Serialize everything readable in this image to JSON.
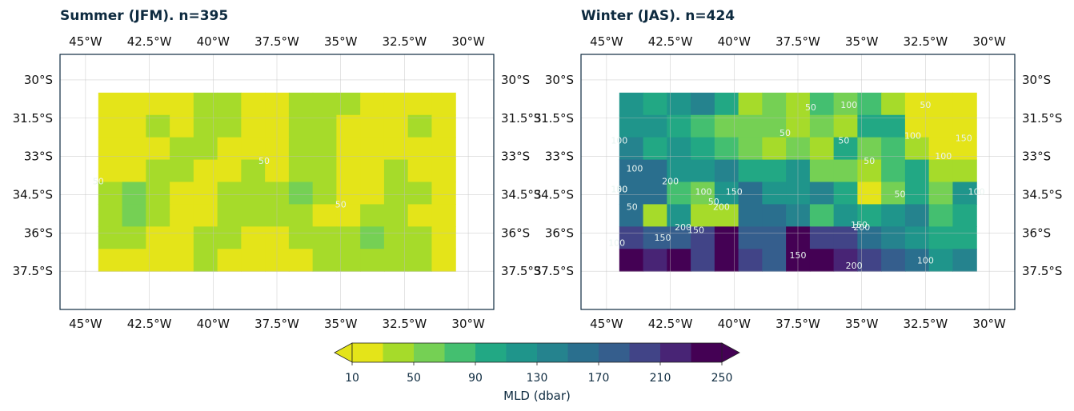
{
  "chart_data": [
    {
      "type": "heatmap",
      "title": "Summer (JFM). n=395",
      "x_ticks": [
        "45°W",
        "42.5°W",
        "40°W",
        "37.5°W",
        "35°W",
        "32.5°W",
        "30°W"
      ],
      "y_ticks": [
        "30°S",
        "31.5°S",
        "33°S",
        "34.5°S",
        "36°S",
        "37.5°S"
      ],
      "xlim": [
        -46,
        -29
      ],
      "ylim": [
        -39,
        -29
      ],
      "grid": true,
      "data_extent": {
        "lon": [
          -44.5,
          -30.5
        ],
        "lat": [
          -37.5,
          -30.5
        ]
      },
      "contour_levels": [
        50
      ],
      "contour_labels": [
        "50",
        "50",
        "50"
      ],
      "contour_label_positions": [
        [
          -38,
          -33.3
        ],
        [
          -44.5,
          -34.1
        ],
        [
          -35,
          -35.0
        ]
      ],
      "mld_grid": [
        [
          10,
          10,
          10,
          10,
          30,
          30,
          10,
          10,
          30,
          30,
          30,
          10,
          10,
          10,
          10
        ],
        [
          10,
          10,
          30,
          10,
          30,
          30,
          10,
          10,
          30,
          30,
          10,
          10,
          10,
          30,
          10
        ],
        [
          10,
          10,
          10,
          30,
          30,
          10,
          10,
          10,
          30,
          30,
          10,
          10,
          10,
          10,
          10
        ],
        [
          10,
          10,
          30,
          30,
          10,
          10,
          30,
          10,
          30,
          30,
          10,
          10,
          30,
          10,
          10
        ],
        [
          30,
          50,
          30,
          10,
          10,
          30,
          30,
          40,
          55,
          30,
          10,
          10,
          30,
          30,
          10
        ],
        [
          30,
          50,
          30,
          10,
          10,
          30,
          30,
          30,
          30,
          10,
          10,
          30,
          30,
          10,
          10
        ],
        [
          30,
          30,
          10,
          10,
          30,
          30,
          10,
          10,
          30,
          30,
          30,
          55,
          30,
          30,
          10
        ],
        [
          10,
          10,
          10,
          10,
          30,
          10,
          10,
          10,
          10,
          30,
          30,
          30,
          30,
          30,
          10
        ]
      ]
    },
    {
      "type": "heatmap",
      "title": "Winter (JAS). n=424",
      "x_ticks": [
        "45°W",
        "42.5°W",
        "40°W",
        "37.5°W",
        "35°W",
        "32.5°W",
        "30°W"
      ],
      "y_ticks": [
        "30°S",
        "31.5°S",
        "33°S",
        "34.5°S",
        "36°S",
        "37.5°S"
      ],
      "xlim": [
        -46,
        -29
      ],
      "ylim": [
        -39,
        -29
      ],
      "grid": true,
      "data_extent": {
        "lon": [
          -44.5,
          -30.5
        ],
        "lat": [
          -37.5,
          -30.5
        ]
      },
      "contour_levels": [
        50,
        100,
        150,
        200
      ],
      "contour_labels": [
        "50",
        "100",
        "50",
        "50",
        "100",
        "150",
        "50",
        "150",
        "50",
        "200",
        "150",
        "50",
        "100",
        "150",
        "100",
        "200",
        "200",
        "150",
        "200",
        "150",
        "150",
        "100",
        "200",
        "100",
        "50",
        "100",
        "50",
        "100",
        "100",
        "100"
      ],
      "contour_label_positions": [
        [
          -37,
          -31.2
        ],
        [
          -35.5,
          -31.1
        ],
        [
          -32.5,
          -31.1
        ],
        [
          -38,
          -32.2
        ],
        [
          -33,
          -32.3
        ],
        [
          -31,
          -32.4
        ],
        [
          -35.7,
          -32.5
        ],
        [
          -40,
          -34.5
        ],
        [
          -34.7,
          -33.3
        ],
        [
          -42.5,
          -34.1
        ],
        [
          -44.5,
          -34.4
        ],
        [
          -44,
          -35.1
        ],
        [
          -44.6,
          -36.5
        ],
        [
          -42.8,
          -36.3
        ],
        [
          -44.5,
          -34.4
        ],
        [
          -42,
          -35.9
        ],
        [
          -40.5,
          -35.1
        ],
        [
          -41.5,
          -36.0
        ],
        [
          -35,
          -35.9
        ],
        [
          -37.5,
          -37.0
        ],
        [
          -35.1,
          -35.8
        ],
        [
          -30.5,
          -34.5
        ],
        [
          -35.3,
          -37.4
        ],
        [
          -32.5,
          -37.2
        ],
        [
          -40.8,
          -34.9
        ],
        [
          -41.2,
          -34.5
        ],
        [
          -33.5,
          -34.6
        ],
        [
          -31.8,
          -33.1
        ],
        [
          -44.5,
          -32.5
        ],
        [
          -43.9,
          -33.6
        ]
      ],
      "mld_grid": [
        [
          110,
          100,
          120,
          130,
          90,
          30,
          60,
          30,
          70,
          60,
          80,
          30,
          20,
          20,
          10
        ],
        [
          120,
          110,
          90,
          80,
          50,
          60,
          50,
          30,
          60,
          30,
          90,
          100,
          20,
          20,
          10
        ],
        [
          130,
          100,
          110,
          90,
          70,
          50,
          40,
          60,
          40,
          100,
          60,
          70,
          30,
          20,
          10
        ],
        [
          160,
          150,
          110,
          120,
          140,
          100,
          90,
          120,
          60,
          50,
          40,
          80,
          90,
          30,
          40
        ],
        [
          160,
          150,
          70,
          60,
          110,
          160,
          110,
          120,
          130,
          90,
          20,
          60,
          100,
          50,
          110
        ],
        [
          150,
          40,
          110,
          40,
          40,
          160,
          150,
          140,
          80,
          120,
          100,
          110,
          130,
          80,
          90
        ],
        [
          200,
          170,
          180,
          200,
          240,
          180,
          170,
          230,
          190,
          190,
          150,
          130,
          110,
          100,
          100
        ],
        [
          230,
          210,
          240,
          200,
          240,
          190,
          170,
          240,
          240,
          220,
          190,
          170,
          160,
          110,
          140
        ]
      ]
    }
  ],
  "colorbar": {
    "label": "MLD (dbar)",
    "vmin": 10,
    "vmax": 250,
    "levels": [
      10,
      30,
      50,
      70,
      90,
      110,
      130,
      150,
      170,
      190,
      210,
      230,
      250
    ],
    "tick_labels": [
      "10",
      "50",
      "90",
      "130",
      "170",
      "210",
      "250"
    ],
    "tick_values": [
      10,
      50,
      90,
      130,
      170,
      210,
      250
    ],
    "extend": "both",
    "colormap": "viridis_r",
    "colors": [
      "#e4e419",
      "#a6db2a",
      "#75d054",
      "#44bf70",
      "#22a884",
      "#1f958b",
      "#25838e",
      "#2a6f8e",
      "#355e8d",
      "#414487",
      "#482475",
      "#440154"
    ]
  }
}
